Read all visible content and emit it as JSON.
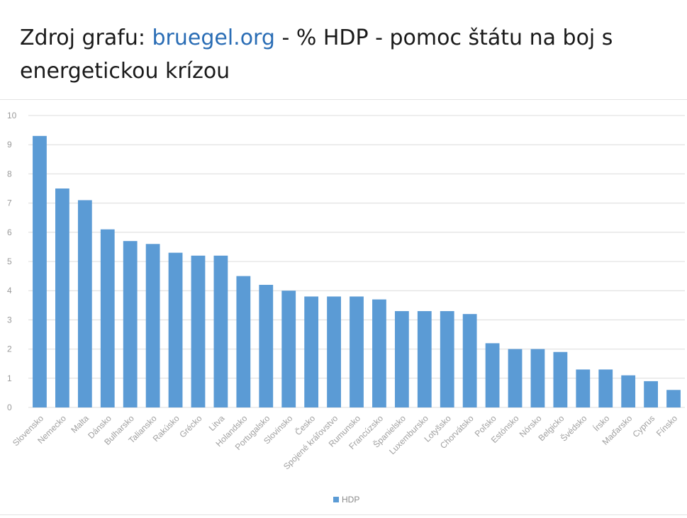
{
  "caption": {
    "prefix": "Zdroj grafu: ",
    "link": "bruegel.org",
    "suffix": " - % HDP - pomoc štátu na boj s energetickou krízou"
  },
  "colors": {
    "bar": "#5b9bd5",
    "link": "#2a6db5",
    "grid": "#dcdcdc"
  },
  "chart_data": {
    "type": "bar",
    "title": "",
    "xlabel": "",
    "ylabel": "",
    "ylim": [
      0,
      10
    ],
    "yticks": [
      0,
      1,
      2,
      3,
      4,
      5,
      6,
      7,
      8,
      9,
      10
    ],
    "grid": true,
    "legend_position": "bottom",
    "categories": [
      "Slovensko",
      "Nemecko",
      "Malta",
      "Dánsko",
      "Bulharsko",
      "Taliansko",
      "Rakúsko",
      "Grécko",
      "Litva",
      "Holandsko",
      "Portugalsko",
      "Slovinsko",
      "Česko",
      "Spojené kráľovstvo",
      "Rumunsko",
      "Francúzsko",
      "Španielsko",
      "Luxembursko",
      "Lotyšsko",
      "Chorvátsko",
      "Poľsko",
      "Estónsko",
      "Nórsko",
      "Belgicko",
      "Švédsko",
      "Írsko",
      "Maďarsko",
      "Cyprus",
      "Fínsko"
    ],
    "series": [
      {
        "name": "HDP",
        "values": [
          9.3,
          7.5,
          7.1,
          6.1,
          5.7,
          5.6,
          5.3,
          5.2,
          5.2,
          4.5,
          4.2,
          4.0,
          3.8,
          3.8,
          3.8,
          3.7,
          3.3,
          3.3,
          3.3,
          3.2,
          2.2,
          2.0,
          2.0,
          1.9,
          1.3,
          1.3,
          1.1,
          0.9,
          0.6
        ]
      }
    ]
  }
}
